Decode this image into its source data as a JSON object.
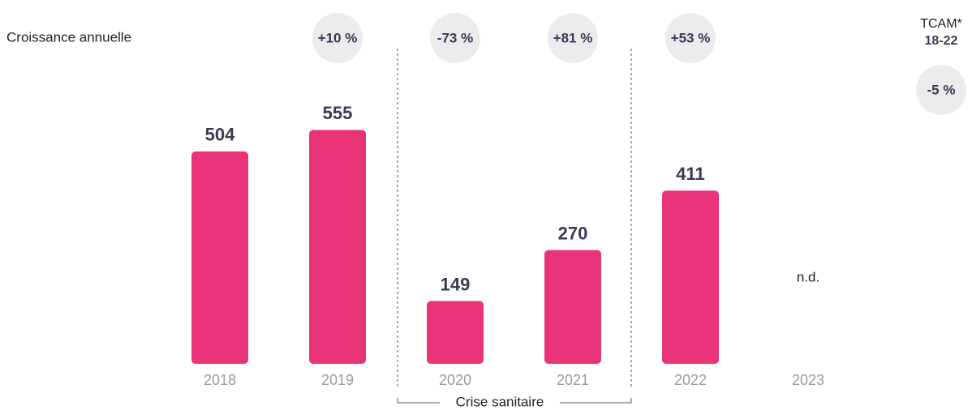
{
  "chart_data": {
    "type": "bar",
    "growth_title": "Croissance annuelle",
    "categories": [
      "2018",
      "2019",
      "2020",
      "2021",
      "2022",
      "2023"
    ],
    "values": [
      504,
      555,
      149,
      270,
      411,
      null
    ],
    "value_labels": [
      "504",
      "555",
      "149",
      "270",
      "411",
      "n.d."
    ],
    "color": "#e9347a",
    "growth": [
      null,
      "+10 %",
      "-73 %",
      "+81 %",
      "+53 %",
      null
    ],
    "cagr_title": "TCAM*",
    "cagr_period": "18-22",
    "cagr": "-5 %",
    "period_label": "Crise sanitaire"
  }
}
